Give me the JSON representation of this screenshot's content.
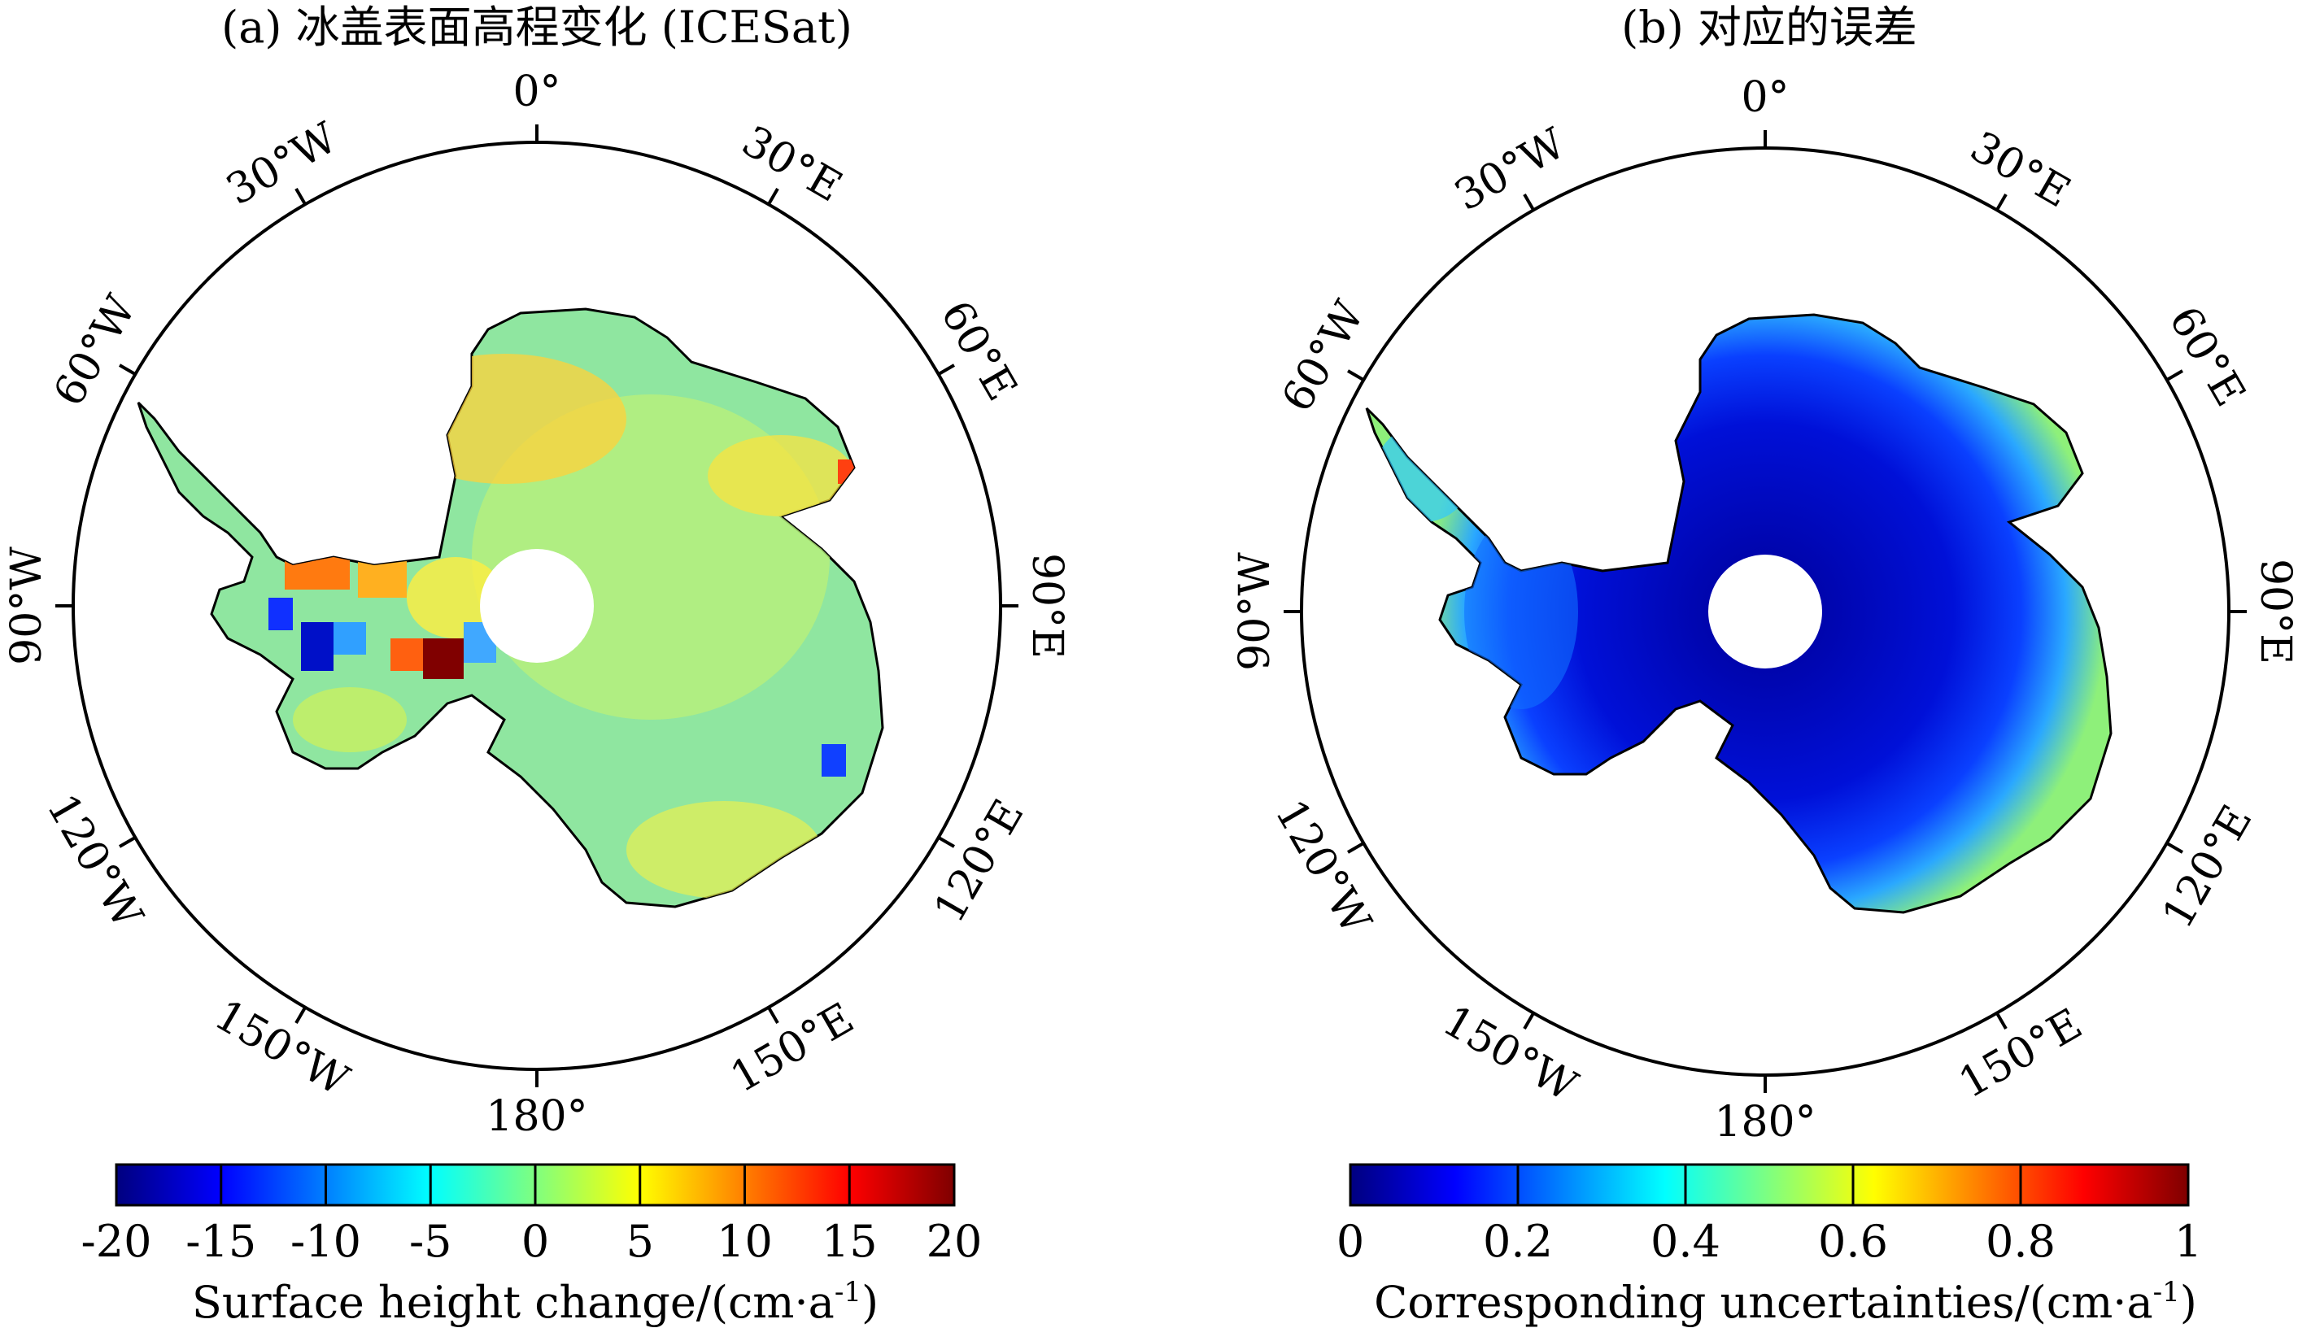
{
  "panels": [
    {
      "id": "a",
      "title": "(a) 冰盖表面高程变化 (ICESat)",
      "coord_labels": {
        "n": "0°",
        "ne30": "30°E",
        "ne60": "60°E",
        "e": "90°E",
        "se120": "120°E",
        "se150": "150°E",
        "s": "180°",
        "sw150": "150°W",
        "sw120": "120°W",
        "w": "90°W",
        "nw60": "60°W",
        "nw30": "30°W"
      },
      "colorbar": {
        "ticks": [
          "-20",
          "-15",
          "-10",
          "-5",
          "0",
          "5",
          "10",
          "15",
          "20"
        ],
        "range": [
          -20,
          20
        ],
        "label_main": "Surface height change/(cm·a",
        "label_sup": "-1",
        "label_end": ")"
      }
    },
    {
      "id": "b",
      "title": "(b) 对应的误差",
      "coord_labels": {
        "n": "0°",
        "ne30": "30°E",
        "ne60": "60°E",
        "e": "90°E",
        "se120": "120°E",
        "se150": "150°E",
        "s": "180°",
        "sw150": "150°W",
        "sw120": "120°W",
        "w": "90°W",
        "nw60": "60°W",
        "nw30": "30°W"
      },
      "colorbar": {
        "ticks": [
          "0",
          "0.2",
          "0.4",
          "0.6",
          "0.8",
          "1"
        ],
        "range": [
          0,
          1
        ],
        "label_main": "Corresponding uncertainties/(cm·a",
        "label_sup": "-1",
        "label_end": ")"
      }
    }
  ],
  "colors": {
    "jet": [
      "#00007f",
      "#0000ff",
      "#007fff",
      "#00ffff",
      "#7fff7f",
      "#ffff00",
      "#ff7f00",
      "#ff0000",
      "#7f0000"
    ],
    "land_a": "#8fe6a0",
    "land_b": "#0a1ee6",
    "pole_hole": "#ffffff"
  }
}
